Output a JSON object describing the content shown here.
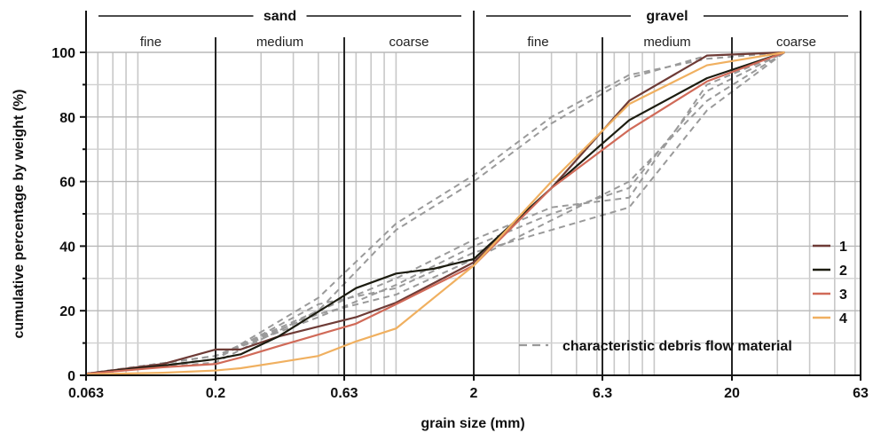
{
  "chart_data": {
    "type": "line",
    "xlabel": "grain size (mm)",
    "ylabel": "cumulative percentage by weight (%)",
    "x_scale": "log",
    "xlim": [
      0.063,
      63
    ],
    "ylim": [
      0,
      100
    ],
    "x_ticks": [
      0.063,
      0.2,
      0.63,
      2,
      6.3,
      20,
      63
    ],
    "x_tick_labels": [
      "0.063",
      "0.2",
      "0.63",
      "2",
      "6.3",
      "20",
      "63"
    ],
    "y_ticks": [
      0,
      20,
      40,
      60,
      80,
      100
    ],
    "y_tick_labels": [
      "0",
      "20",
      "40",
      "60",
      "80",
      "100"
    ],
    "grid": true,
    "groups": [
      {
        "label": "sand",
        "range": [
          0.063,
          2
        ]
      },
      {
        "label": "gravel",
        "range": [
          2,
          63
        ]
      }
    ],
    "classes": [
      {
        "label": "fine",
        "range": [
          0.063,
          0.2
        ]
      },
      {
        "label": "medium",
        "range": [
          0.2,
          0.63
        ]
      },
      {
        "label": "coarse",
        "range": [
          0.63,
          2
        ]
      },
      {
        "label": "fine",
        "range": [
          2,
          6.3
        ]
      },
      {
        "label": "medium",
        "range": [
          6.3,
          20
        ]
      },
      {
        "label": "coarse",
        "range": [
          20,
          63
        ]
      }
    ],
    "series": [
      {
        "name": "1",
        "color": "#6e3b36",
        "x": [
          0.063,
          0.125,
          0.2,
          0.25,
          0.35,
          0.7,
          1.0,
          2,
          4,
          8,
          16,
          32
        ],
        "y": [
          0.5,
          3.5,
          8,
          8,
          12,
          18,
          22.5,
          35,
          58,
          85,
          99,
          100
        ]
      },
      {
        "name": "2",
        "color": "#1c1c10",
        "x": [
          0.063,
          0.125,
          0.2,
          0.25,
          0.35,
          0.7,
          1.0,
          1.4,
          2,
          4,
          8,
          16,
          32
        ],
        "y": [
          0.5,
          3,
          5,
          6.5,
          12,
          27,
          31.5,
          33,
          36,
          58,
          79,
          92,
          100
        ]
      },
      {
        "name": "3",
        "color": "#d06a58",
        "x": [
          0.063,
          0.125,
          0.2,
          0.25,
          0.35,
          0.7,
          1.0,
          2,
          4,
          8,
          16,
          32
        ],
        "y": [
          0.5,
          2.5,
          3.5,
          5.5,
          9,
          16,
          22,
          34,
          58,
          76,
          91,
          100
        ]
      },
      {
        "name": "4",
        "color": "#f0b060",
        "x": [
          0.063,
          0.125,
          0.2,
          0.25,
          0.35,
          0.5,
          0.7,
          1.0,
          2,
          4,
          8,
          16,
          32
        ],
        "y": [
          0.3,
          0.8,
          1.5,
          2.2,
          4,
          6,
          10.5,
          14.5,
          34,
          60,
          84,
          96,
          100
        ]
      }
    ],
    "reference_series": {
      "label": "characteristic debris flow material",
      "color": "#9a9a9a",
      "curves": [
        {
          "x": [
            0.063,
            0.2,
            0.5,
            1.0,
            2,
            4,
            8,
            16,
            32
          ],
          "y": [
            0.5,
            6,
            20,
            45,
            60,
            78,
            92,
            99,
            100
          ]
        },
        {
          "x": [
            0.063,
            0.2,
            0.5,
            1.0,
            2,
            4,
            8,
            16,
            32
          ],
          "y": [
            0.5,
            5,
            24,
            47,
            62,
            80,
            93,
            98,
            100
          ]
        },
        {
          "x": [
            0.063,
            0.2,
            0.5,
            1.0,
            2,
            4,
            8,
            16,
            32
          ],
          "y": [
            0.5,
            6,
            18,
            28,
            40,
            50,
            58,
            88,
            100
          ]
        },
        {
          "x": [
            0.063,
            0.2,
            0.5,
            1.0,
            2,
            4,
            8,
            16,
            32
          ],
          "y": [
            0.5,
            4,
            20,
            30,
            42,
            52,
            55,
            90,
            100
          ]
        },
        {
          "x": [
            0.063,
            0.2,
            0.5,
            1.0,
            2,
            4,
            8,
            16,
            32
          ],
          "y": [
            0.5,
            5,
            22,
            27,
            38,
            45,
            52,
            82,
            100
          ]
        },
        {
          "x": [
            0.063,
            0.2,
            0.5,
            1.0,
            2,
            4,
            8,
            16,
            32
          ],
          "y": [
            0.5,
            6,
            19,
            25,
            36,
            48,
            60,
            85,
            100
          ]
        }
      ]
    },
    "legend": {
      "placement": "bottom-right",
      "entries": [
        "1",
        "2",
        "3",
        "4"
      ]
    }
  }
}
